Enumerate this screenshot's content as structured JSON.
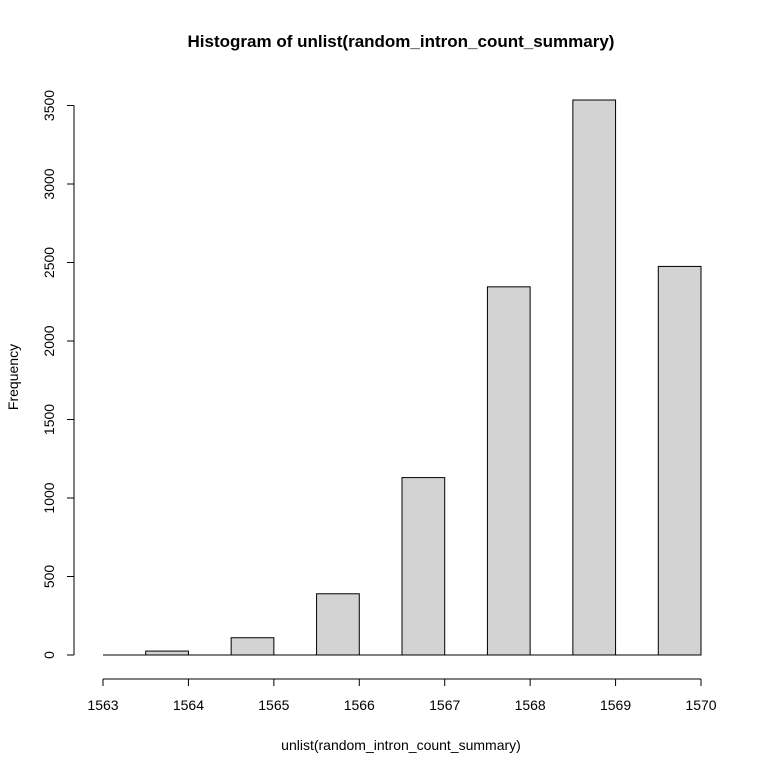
{
  "chart_data": {
    "type": "bar",
    "title": "Histogram of unlist(random_intron_count_summary)",
    "xlabel": "unlist(random_intron_count_summary)",
    "ylabel": "Frequency",
    "bin_width": 0.5,
    "bins": [
      {
        "start": 1563.0,
        "end": 1563.5,
        "count": 0
      },
      {
        "start": 1563.5,
        "end": 1564.0,
        "count": 25
      },
      {
        "start": 1564.0,
        "end": 1564.5,
        "count": 0
      },
      {
        "start": 1564.5,
        "end": 1565.0,
        "count": 110
      },
      {
        "start": 1565.0,
        "end": 1565.5,
        "count": 0
      },
      {
        "start": 1565.5,
        "end": 1566.0,
        "count": 390
      },
      {
        "start": 1566.0,
        "end": 1566.5,
        "count": 0
      },
      {
        "start": 1566.5,
        "end": 1567.0,
        "count": 1130
      },
      {
        "start": 1567.0,
        "end": 1567.5,
        "count": 0
      },
      {
        "start": 1567.5,
        "end": 1568.0,
        "count": 2345
      },
      {
        "start": 1568.0,
        "end": 1568.5,
        "count": 0
      },
      {
        "start": 1568.5,
        "end": 1569.0,
        "count": 3535
      },
      {
        "start": 1569.0,
        "end": 1569.5,
        "count": 0
      },
      {
        "start": 1569.5,
        "end": 1570.0,
        "count": 2475
      }
    ],
    "xlim": [
      1563,
      1570
    ],
    "ylim": [
      0,
      3535
    ],
    "x_ticks": [
      "1563",
      "1564",
      "1565",
      "1566",
      "1567",
      "1568",
      "1569",
      "1570"
    ],
    "y_ticks": [
      "0",
      "500",
      "1000",
      "1500",
      "2000",
      "2500",
      "3000",
      "3500"
    ],
    "bar_color": "#d3d3d3",
    "border_color": "#000000",
    "grid": false,
    "legend": "none"
  }
}
